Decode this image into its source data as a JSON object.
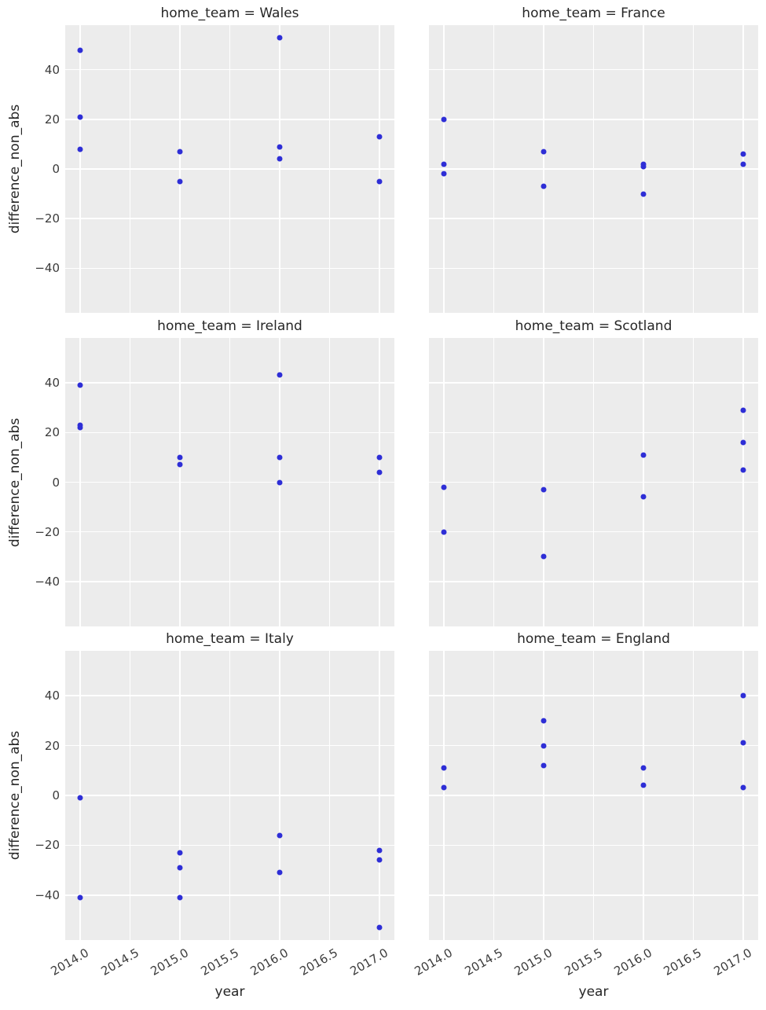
{
  "figure": {
    "panel_background": "#ececec",
    "grid_color": "#ffffff",
    "point_color": "#2e2ed6",
    "title_color": "#262626",
    "tick_color": "#3b3b3b"
  },
  "chart_data": {
    "type": "scatter",
    "facet_grid": {
      "rows": 3,
      "cols": 2,
      "facet_variable": "home_team"
    },
    "xlabel": "year",
    "ylabel": "difference_non_abs",
    "xlim": [
      2013.85,
      2017.15
    ],
    "ylim": [
      -58,
      58
    ],
    "x_ticks": [
      2014.0,
      2014.5,
      2015.0,
      2015.5,
      2016.0,
      2016.5,
      2017.0
    ],
    "x_tick_labels": [
      "2014.0",
      "2014.5",
      "2015.0",
      "2015.5",
      "2016.0",
      "2016.5",
      "2017.0"
    ],
    "y_ticks": [
      40,
      20,
      0,
      -20,
      -40
    ],
    "y_tick_labels": [
      "40",
      "20",
      "0",
      "−20",
      "−40"
    ],
    "grid": true,
    "legend": false,
    "facets": [
      {
        "title": "home_team = Wales",
        "points": [
          [
            2014,
            48
          ],
          [
            2014,
            21
          ],
          [
            2014,
            8
          ],
          [
            2015,
            7
          ],
          [
            2015,
            -5
          ],
          [
            2016,
            53
          ],
          [
            2016,
            9
          ],
          [
            2016,
            4
          ],
          [
            2017,
            13
          ],
          [
            2017,
            -5
          ]
        ]
      },
      {
        "title": "home_team = France",
        "points": [
          [
            2014,
            20
          ],
          [
            2014,
            2
          ],
          [
            2014,
            -2
          ],
          [
            2015,
            7
          ],
          [
            2015,
            -7
          ],
          [
            2016,
            2
          ],
          [
            2016,
            1
          ],
          [
            2016,
            -10
          ],
          [
            2017,
            6
          ],
          [
            2017,
            2
          ]
        ]
      },
      {
        "title": "home_team = Ireland",
        "points": [
          [
            2014,
            39
          ],
          [
            2014,
            23
          ],
          [
            2014,
            22
          ],
          [
            2015,
            10
          ],
          [
            2015,
            7
          ],
          [
            2016,
            43
          ],
          [
            2016,
            10
          ],
          [
            2016,
            0
          ],
          [
            2017,
            10
          ],
          [
            2017,
            4
          ]
        ]
      },
      {
        "title": "home_team = Scotland",
        "points": [
          [
            2014,
            -2
          ],
          [
            2014,
            -20
          ],
          [
            2015,
            -3
          ],
          [
            2015,
            -30
          ],
          [
            2016,
            11
          ],
          [
            2016,
            -6
          ],
          [
            2017,
            29
          ],
          [
            2017,
            16
          ],
          [
            2017,
            5
          ]
        ]
      },
      {
        "title": "home_team = Italy",
        "points": [
          [
            2014,
            -1
          ],
          [
            2014,
            -41
          ],
          [
            2015,
            -23
          ],
          [
            2015,
            -29
          ],
          [
            2015,
            -41
          ],
          [
            2016,
            -16
          ],
          [
            2016,
            -31
          ],
          [
            2017,
            -22
          ],
          [
            2017,
            -26
          ],
          [
            2017,
            -53
          ]
        ]
      },
      {
        "title": "home_team = England",
        "points": [
          [
            2014,
            11
          ],
          [
            2014,
            3
          ],
          [
            2015,
            30
          ],
          [
            2015,
            20
          ],
          [
            2015,
            12
          ],
          [
            2016,
            11
          ],
          [
            2016,
            4
          ],
          [
            2017,
            40
          ],
          [
            2017,
            21
          ],
          [
            2017,
            3
          ]
        ]
      }
    ]
  }
}
